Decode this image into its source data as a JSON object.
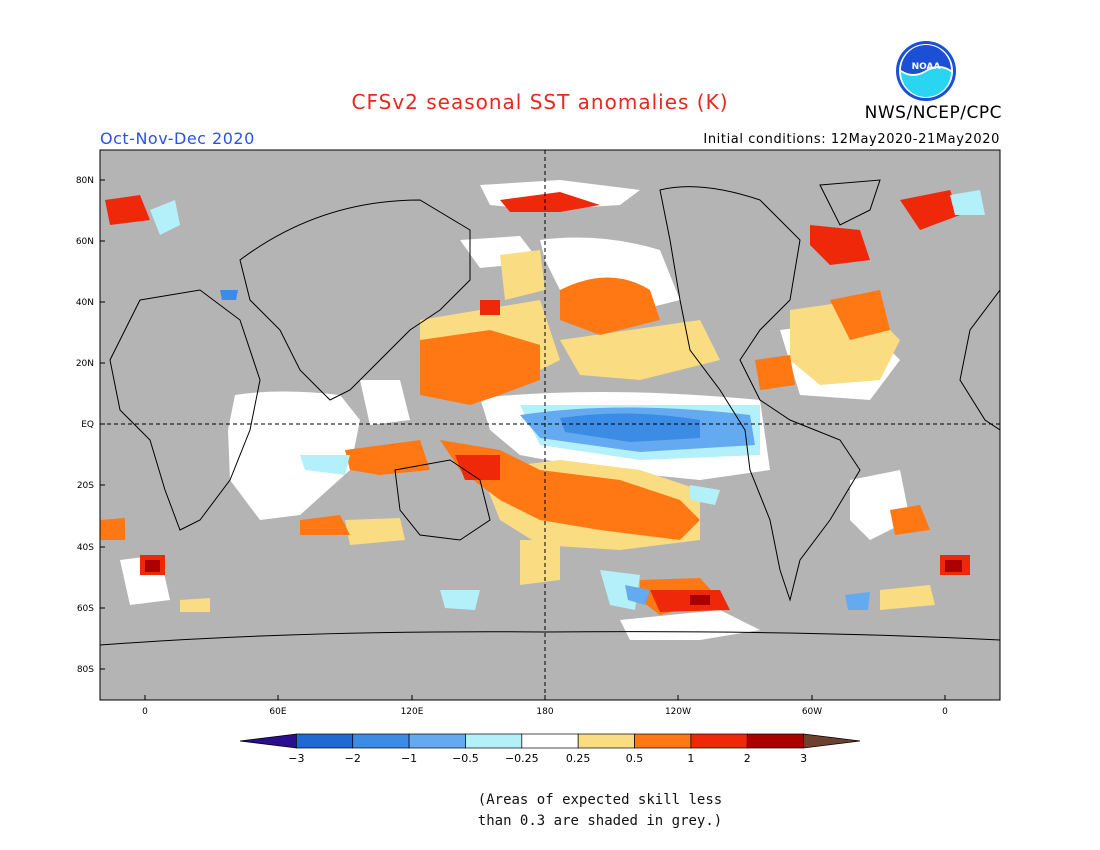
{
  "header": {
    "title": "CFSv2 seasonal SST anomalies (K)",
    "period": "Oct-Nov-Dec 2020",
    "agency": "NWS/NCEP/CPC",
    "initial_conditions": "Initial conditions: 12May2020-21May2020",
    "logo_text": "NOAA"
  },
  "map": {
    "lat_labels": [
      "80N",
      "60N",
      "40N",
      "20N",
      "EQ",
      "20S",
      "40S",
      "60S",
      "80S"
    ],
    "lon_labels": [
      "0",
      "60E",
      "120E",
      "180",
      "120W",
      "60W",
      "0"
    ],
    "projection": "equirectangular, Pacific-centered",
    "land_color": "#b4b4b4",
    "low_skill_color": "#b4b4b4"
  },
  "legend": {
    "tick_labels": [
      "-3",
      "-2",
      "-1",
      "-0.5",
      "-0.25",
      "0.25",
      "0.5",
      "1",
      "2",
      "3"
    ],
    "colors": [
      "#2a0e8e",
      "#1e6ad2",
      "#3c8ce6",
      "#64aaf0",
      "#b4f0fa",
      "#ffffff",
      "#fadc82",
      "#ff7814",
      "#f0280a",
      "#aa0000",
      "#6e4030"
    ]
  },
  "footnote": {
    "line1": "(Areas of expected skill less",
    "line2": "than 0.3 are shaded in grey.)"
  }
}
